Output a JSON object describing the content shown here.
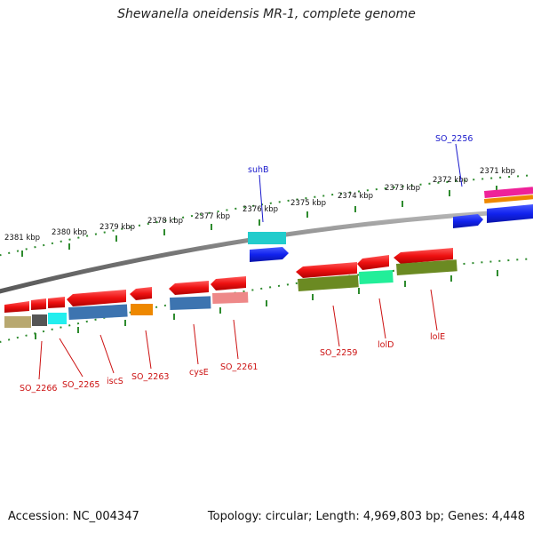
{
  "title": "Shewanella oneidensis MR-1, complete genome",
  "footer": {
    "accession": "Accession: NC_004347",
    "summary": "Topology: circular; Length: 4,969,803 bp; Genes: 4,448"
  },
  "scale_labels": [
    "2381 kbp",
    "2380 kbp",
    "2379 kbp",
    "2378 kbp",
    "2377 kbp",
    "2376 kbp",
    "2375 kbp",
    "2374 kbp",
    "2373 kbp",
    "2372 kbp",
    "2371 kbp"
  ],
  "forward_labels": [
    "suhB",
    "SO_2256"
  ],
  "reverse_labels": [
    "SO_2266",
    "SO_2265",
    "iscS",
    "SO_2263",
    "cysE",
    "SO_2261",
    "SO_2259",
    "lolD",
    "lolE"
  ],
  "colors": {
    "backbone": "#7a7a7a",
    "tick_dot": "#2e8b2e",
    "forward_label": "#1a1acc",
    "reverse_label": "#cc1111",
    "gene_red": "#ee1111",
    "gene_blue": "#1122ee",
    "cog_steelblue": "#3d74b0",
    "cog_olive": "#6b8a22",
    "cog_cyan": "#22cccc",
    "cog_mint": "#22ee99",
    "cog_orange": "#ee8800",
    "cog_pink": "#ee8888",
    "cog_gray": "#555555",
    "cog_khaki": "#b8a870",
    "cog_magenta": "#ee2299"
  }
}
